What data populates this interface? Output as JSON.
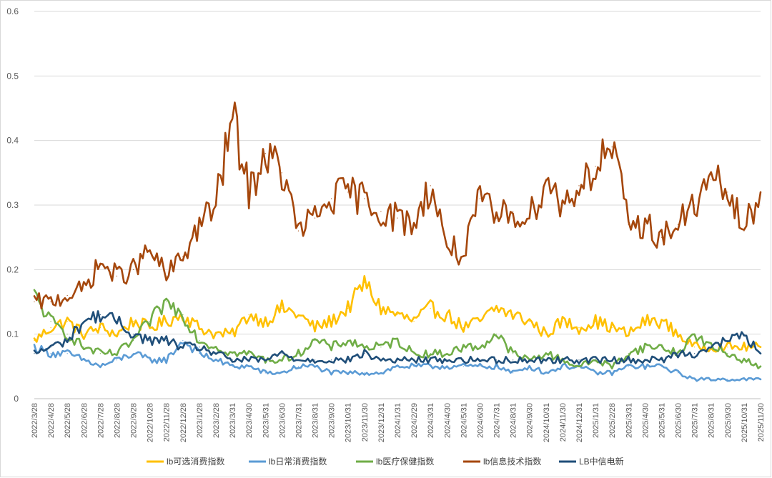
{
  "chart_data": {
    "type": "line",
    "title": "",
    "xlabel": "",
    "ylabel": "",
    "ylim": [
      0,
      0.6
    ],
    "yticks": [
      "0",
      "0.1",
      "0.2",
      "0.3",
      "0.4",
      "0.5",
      "0.6"
    ],
    "grid": "horizontal",
    "legend_position": "bottom",
    "x_tick_labels": [
      "2022/3/28",
      "2022/4/28",
      "2022/5/28",
      "2022/6/28",
      "2022/7/28",
      "2022/8/28",
      "2022/9/28",
      "2022/10/28",
      "2022/11/28",
      "2022/12/28",
      "2023/1/28",
      "2023/2/28",
      "2023/3/31",
      "2023/4/30",
      "2023/5/31",
      "2023/6/30",
      "2023/7/31",
      "2023/8/31",
      "2023/9/30",
      "2023/10/31",
      "2023/11/30",
      "2023/12/31",
      "2024/1/31",
      "2024/2/29",
      "2024/3/31",
      "2024/4/30",
      "2024/5/31",
      "2024/6/30",
      "2024/7/31",
      "2024/8/31",
      "2024/9/30",
      "2024/10/31",
      "2024/11/30",
      "2024/12/31",
      "2025/1/31",
      "2025/2/28",
      "2025/3/31",
      "2025/4/30",
      "2025/5/31",
      "2025/6/30",
      "2025/7/31",
      "2025/8/31",
      "2025/9/30",
      "2025/10/31",
      "2025/11/30"
    ],
    "series": [
      {
        "name": "lb可选消费指数",
        "color": "#ffc000",
        "values": [
          0.09,
          0.11,
          0.12,
          0.1,
          0.11,
          0.1,
          0.12,
          0.11,
          0.12,
          0.13,
          0.11,
          0.1,
          0.1,
          0.13,
          0.12,
          0.14,
          0.13,
          0.11,
          0.12,
          0.14,
          0.18,
          0.14,
          0.13,
          0.12,
          0.14,
          0.13,
          0.11,
          0.12,
          0.14,
          0.13,
          0.12,
          0.1,
          0.12,
          0.11,
          0.12,
          0.11,
          0.1,
          0.12,
          0.12,
          0.1,
          0.08,
          0.08,
          0.08,
          0.08,
          0.08
        ]
      },
      {
        "name": "lb日常消费指数",
        "color": "#5b9bd5",
        "values": [
          0.08,
          0.07,
          0.07,
          0.06,
          0.05,
          0.06,
          0.07,
          0.06,
          0.06,
          0.09,
          0.07,
          0.06,
          0.05,
          0.05,
          0.04,
          0.04,
          0.05,
          0.05,
          0.04,
          0.04,
          0.04,
          0.04,
          0.05,
          0.05,
          0.05,
          0.05,
          0.05,
          0.05,
          0.05,
          0.04,
          0.05,
          0.04,
          0.05,
          0.05,
          0.04,
          0.04,
          0.05,
          0.05,
          0.05,
          0.04,
          0.03,
          0.03,
          0.03,
          0.03,
          0.03
        ]
      },
      {
        "name": "lb医疗保健指数",
        "color": "#70ad47",
        "values": [
          0.16,
          0.12,
          0.1,
          0.08,
          0.07,
          0.07,
          0.09,
          0.12,
          0.15,
          0.13,
          0.09,
          0.08,
          0.07,
          0.07,
          0.06,
          0.06,
          0.07,
          0.09,
          0.08,
          0.09,
          0.08,
          0.08,
          0.09,
          0.07,
          0.07,
          0.07,
          0.08,
          0.08,
          0.1,
          0.07,
          0.06,
          0.07,
          0.06,
          0.05,
          0.06,
          0.05,
          0.07,
          0.08,
          0.08,
          0.07,
          0.1,
          0.08,
          0.07,
          0.06,
          0.05
        ]
      },
      {
        "name": "lb信息技术指数",
        "color": "#a5470c",
        "values": [
          0.15,
          0.15,
          0.16,
          0.17,
          0.21,
          0.19,
          0.2,
          0.23,
          0.19,
          0.22,
          0.27,
          0.3,
          0.44,
          0.32,
          0.38,
          0.35,
          0.26,
          0.28,
          0.31,
          0.32,
          0.31,
          0.29,
          0.28,
          0.27,
          0.33,
          0.24,
          0.22,
          0.31,
          0.28,
          0.29,
          0.28,
          0.34,
          0.3,
          0.33,
          0.36,
          0.39,
          0.27,
          0.27,
          0.25,
          0.27,
          0.3,
          0.34,
          0.32,
          0.26,
          0.32
        ]
      },
      {
        "name": "LB中信电新",
        "color": "#1f4e79",
        "values": [
          0.07,
          0.08,
          0.09,
          0.12,
          0.13,
          0.12,
          0.1,
          0.09,
          0.09,
          0.08,
          0.08,
          0.07,
          0.06,
          0.06,
          0.06,
          0.07,
          0.06,
          0.06,
          0.06,
          0.06,
          0.07,
          0.06,
          0.06,
          0.06,
          0.06,
          0.06,
          0.06,
          0.06,
          0.06,
          0.06,
          0.06,
          0.06,
          0.06,
          0.06,
          0.06,
          0.06,
          0.06,
          0.06,
          0.06,
          0.07,
          0.07,
          0.08,
          0.09,
          0.1,
          0.07
        ]
      }
    ]
  }
}
